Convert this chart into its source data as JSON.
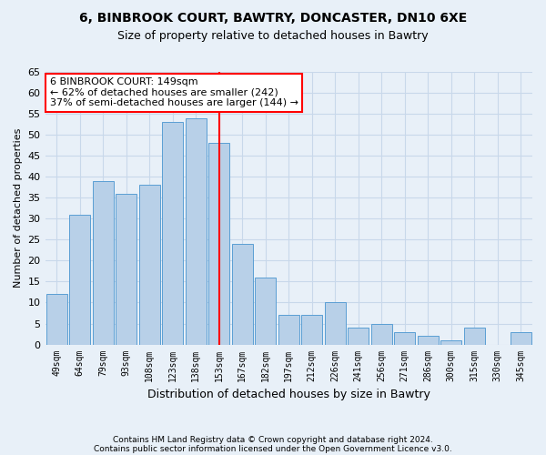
{
  "title1": "6, BINBROOK COURT, BAWTRY, DONCASTER, DN10 6XE",
  "title2": "Size of property relative to detached houses in Bawtry",
  "xlabel": "Distribution of detached houses by size in Bawtry",
  "ylabel": "Number of detached properties",
  "categories": [
    "49sqm",
    "64sqm",
    "79sqm",
    "93sqm",
    "108sqm",
    "123sqm",
    "138sqm",
    "153sqm",
    "167sqm",
    "182sqm",
    "197sqm",
    "212sqm",
    "226sqm",
    "241sqm",
    "256sqm",
    "271sqm",
    "286sqm",
    "300sqm",
    "315sqm",
    "330sqm",
    "345sqm"
  ],
  "values": [
    12,
    31,
    39,
    36,
    38,
    53,
    54,
    48,
    24,
    16,
    7,
    7,
    10,
    4,
    5,
    3,
    2,
    1,
    4,
    0,
    3
  ],
  "bar_color": "#b8d0e8",
  "bar_edge_color": "#5a9fd4",
  "vline_x": 7.0,
  "vline_color": "red",
  "annotation_text": "6 BINBROOK COURT: 149sqm\n← 62% of detached houses are smaller (242)\n37% of semi-detached houses are larger (144) →",
  "annotation_box_color": "white",
  "annotation_box_edge": "red",
  "ylim": [
    0,
    65
  ],
  "yticks": [
    0,
    5,
    10,
    15,
    20,
    25,
    30,
    35,
    40,
    45,
    50,
    55,
    60,
    65
  ],
  "grid_color": "#c8d8ea",
  "footer1": "Contains HM Land Registry data © Crown copyright and database right 2024.",
  "footer2": "Contains public sector information licensed under the Open Government Licence v3.0.",
  "bg_color": "#e8f0f8"
}
